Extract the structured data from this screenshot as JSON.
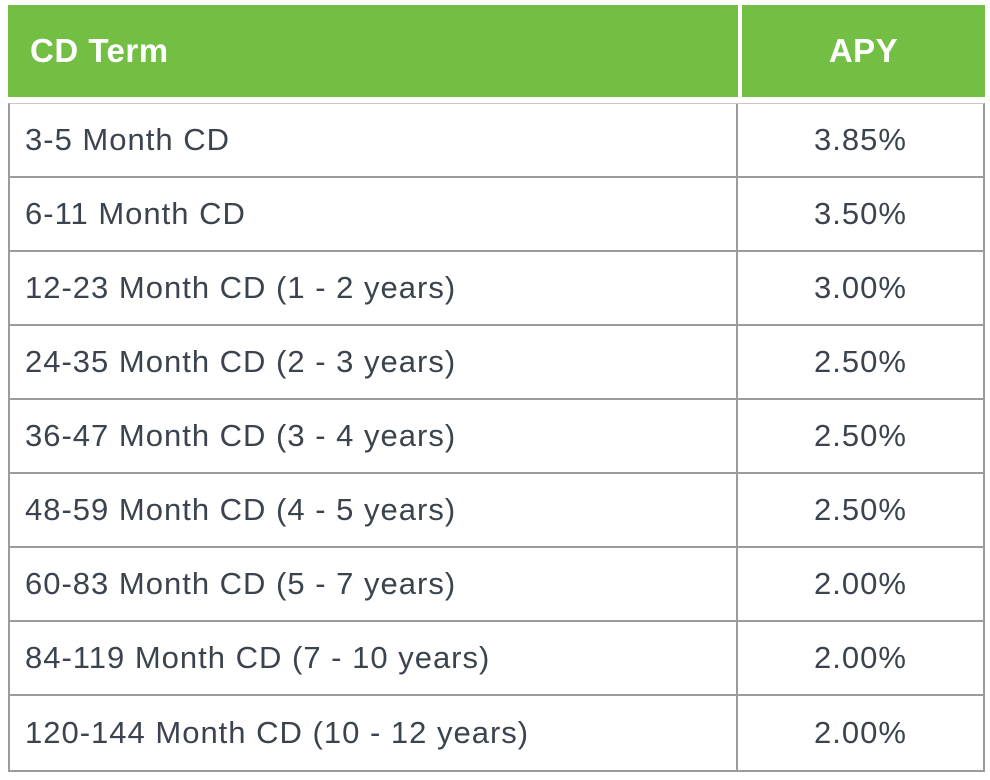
{
  "chart_data": {
    "type": "table",
    "columns": [
      "CD Term",
      "APY"
    ],
    "rows": [
      [
        "3-5 Month CD",
        "3.85%"
      ],
      [
        "6-11 Month CD",
        "3.50%"
      ],
      [
        "12-23 Month CD (1 - 2 years)",
        "3.00%"
      ],
      [
        "24-35 Month CD (2 - 3 years)",
        "2.50%"
      ],
      [
        "36-47 Month CD (3 - 4 years)",
        "2.50%"
      ],
      [
        "48-59 Month CD (4 - 5 years)",
        "2.50%"
      ],
      [
        "60-83 Month CD (5 - 7 years)",
        "2.00%"
      ],
      [
        "84-119 Month CD (7 - 10 years)",
        "2.00%"
      ],
      [
        "120-144 Month CD (10 - 12 years)",
        "2.00%"
      ]
    ]
  },
  "colors": {
    "header_bg": "#72BF44",
    "header_text": "#FFFFFF",
    "body_text": "#3B444E",
    "border": "#9B9B9B"
  }
}
